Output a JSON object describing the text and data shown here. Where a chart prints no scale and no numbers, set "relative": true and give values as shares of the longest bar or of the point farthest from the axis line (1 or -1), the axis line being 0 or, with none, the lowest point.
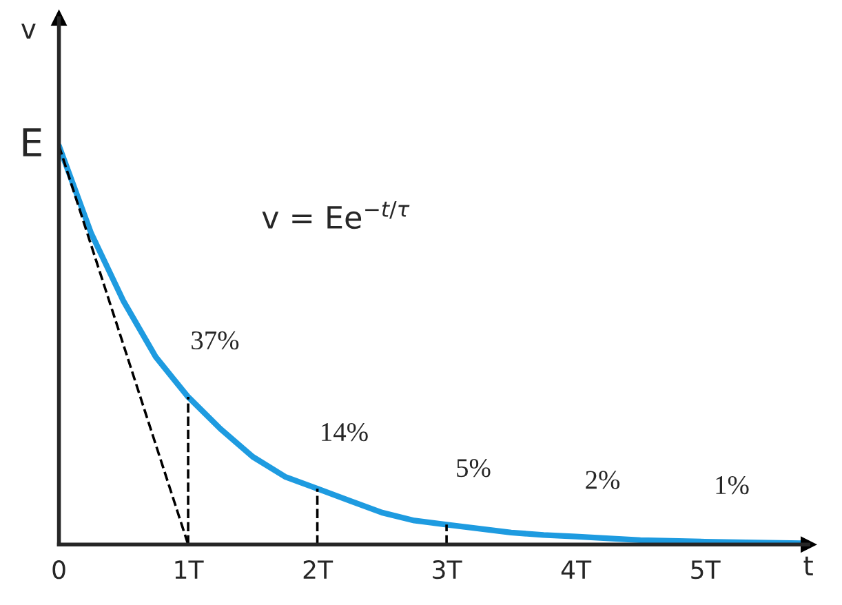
{
  "chart_data": {
    "type": "line",
    "relative": true,
    "xlabel": "t",
    "ylabel": "v",
    "xlim": [
      0,
      5.8
    ],
    "xticks": [
      0,
      {
        "value": 1,
        "label": "1T"
      },
      {
        "value": 2,
        "label": "2T"
      },
      {
        "value": 3,
        "label": "3T"
      },
      {
        "value": 4,
        "label": "4T"
      },
      {
        "value": 5,
        "label": "5T"
      }
    ],
    "grid": false,
    "marker": "none",
    "series": [
      {
        "color": "#1e9be0",
        "line_style": "solid",
        "x": [
          0,
          0.25,
          0.5,
          0.75,
          1,
          1.25,
          1.5,
          1.75,
          2,
          2.25,
          2.5,
          2.75,
          3,
          3.25,
          3.5,
          3.75,
          4,
          4.5,
          5,
          5.4,
          5.75
        ],
        "values": [
          1,
          0.78,
          0.61,
          0.47,
          0.37,
          0.29,
          0.22,
          0.17,
          0.14,
          0.11,
          0.08,
          0.06,
          0.05,
          0.04,
          0.03,
          0.024,
          0.02,
          0.011,
          0.007,
          0.005,
          0.003
        ]
      },
      {
        "color": "#000000",
        "line_style": "dashed",
        "x": [
          0,
          1
        ],
        "values": [
          1,
          0
        ]
      },
      {
        "color": "#000000",
        "line_style": "dashed",
        "x": [
          1,
          1
        ],
        "values": [
          0,
          0.37
        ]
      },
      {
        "color": "#000000",
        "line_style": "dashed",
        "x": [
          2,
          2
        ],
        "values": [
          0,
          0.14
        ]
      },
      {
        "color": "#000000",
        "line_style": "dashed",
        "x": [
          3,
          3
        ],
        "values": [
          0,
          0.05
        ]
      }
    ],
    "annotations": [
      {
        "text": "E",
        "x": 0,
        "y": 1
      },
      "v = Ee$^{−t/τ}$",
      {
        "text": "37%",
        "x": 1,
        "y": 0.37
      },
      {
        "text": "14%",
        "x": 2,
        "y": 0.14
      },
      {
        "text": "5%",
        "x": 3,
        "y": 0.05
      },
      {
        "text": "2%",
        "x": 4,
        "y": 0.02
      },
      {
        "text": "1%",
        "x": 5,
        "y": 0.007
      }
    ]
  }
}
